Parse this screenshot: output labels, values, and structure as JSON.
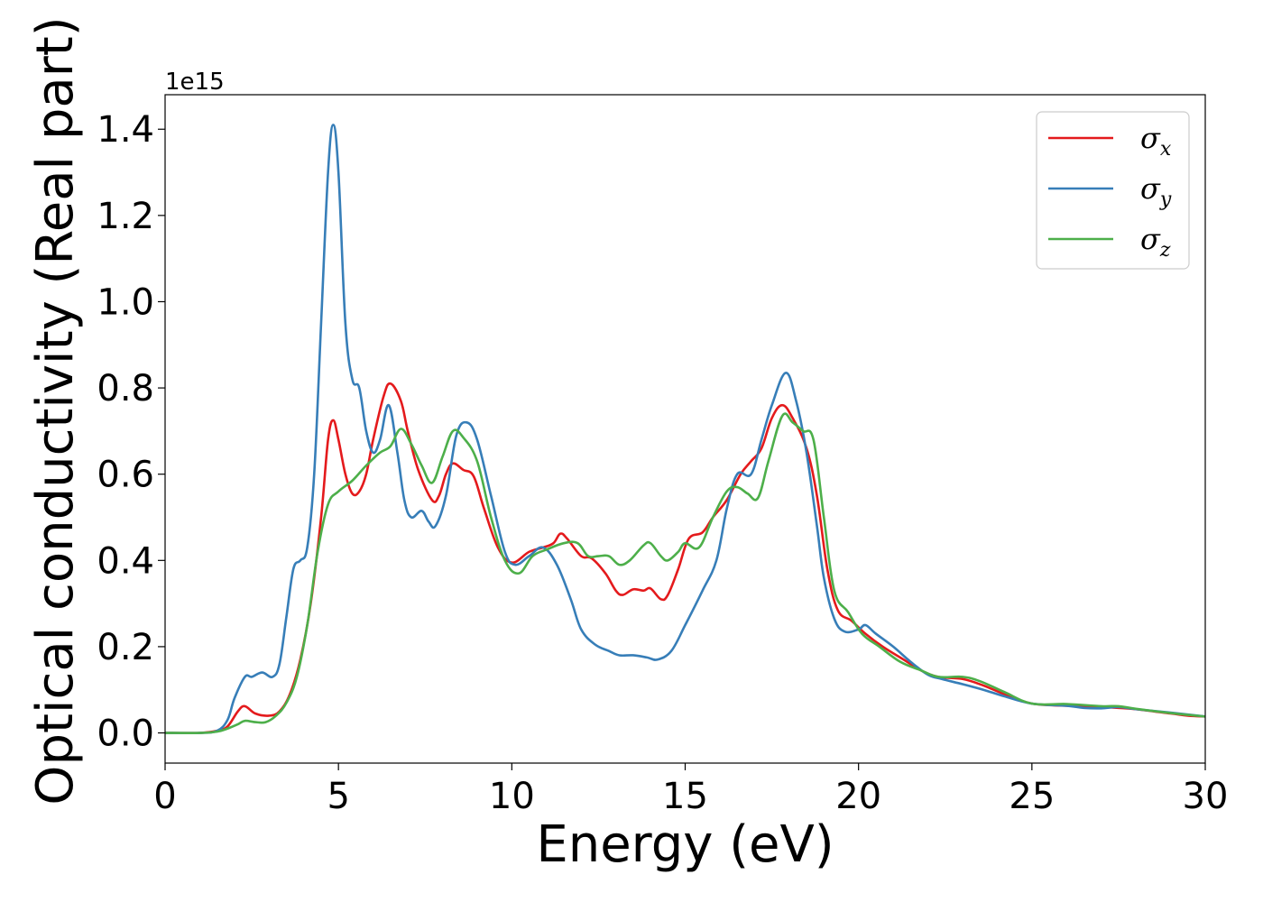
{
  "chart_data": {
    "type": "line",
    "xlabel": "Energy (eV)",
    "ylabel": "Optical conductivity (Real part)",
    "y_offset_label": "1e15",
    "xlim": [
      0,
      30
    ],
    "ylim": [
      -0.07,
      1.48
    ],
    "xticks": [
      0,
      5,
      10,
      15,
      20,
      25,
      30
    ],
    "xtick_labels": [
      "0",
      "5",
      "10",
      "15",
      "20",
      "25",
      "30"
    ],
    "yticks": [
      0.0,
      0.2,
      0.4,
      0.6,
      0.8,
      1.0,
      1.2,
      1.4
    ],
    "ytick_labels": [
      "0.0",
      "0.2",
      "0.4",
      "0.6",
      "0.8",
      "1.0",
      "1.2",
      "1.4"
    ],
    "grid": false,
    "legend_position": "top-right",
    "series": [
      {
        "name": "σx",
        "legend_symbol": "σ",
        "legend_subscript": "x",
        "color": "#e41a1c",
        "points": [
          [
            0,
            0
          ],
          [
            1,
            0
          ],
          [
            1.5,
            0.005
          ],
          [
            1.8,
            0.015
          ],
          [
            2.1,
            0.05
          ],
          [
            2.3,
            0.062
          ],
          [
            2.6,
            0.045
          ],
          [
            3,
            0.04
          ],
          [
            3.3,
            0.05
          ],
          [
            3.6,
            0.09
          ],
          [
            3.9,
            0.17
          ],
          [
            4.2,
            0.3
          ],
          [
            4.5,
            0.5
          ],
          [
            4.7,
            0.68
          ],
          [
            4.85,
            0.725
          ],
          [
            5.0,
            0.68
          ],
          [
            5.2,
            0.6
          ],
          [
            5.4,
            0.555
          ],
          [
            5.6,
            0.56
          ],
          [
            5.8,
            0.6
          ],
          [
            6.0,
            0.68
          ],
          [
            6.3,
            0.78
          ],
          [
            6.5,
            0.81
          ],
          [
            6.8,
            0.77
          ],
          [
            7.0,
            0.7
          ],
          [
            7.3,
            0.61
          ],
          [
            7.7,
            0.54
          ],
          [
            7.9,
            0.55
          ],
          [
            8.1,
            0.6
          ],
          [
            8.3,
            0.625
          ],
          [
            8.6,
            0.61
          ],
          [
            8.9,
            0.595
          ],
          [
            9.2,
            0.52
          ],
          [
            9.6,
            0.43
          ],
          [
            10.0,
            0.395
          ],
          [
            10.5,
            0.42
          ],
          [
            10.9,
            0.43
          ],
          [
            11.2,
            0.44
          ],
          [
            11.4,
            0.462
          ],
          [
            11.6,
            0.45
          ],
          [
            12.0,
            0.41
          ],
          [
            12.3,
            0.405
          ],
          [
            12.7,
            0.37
          ],
          [
            13.0,
            0.33
          ],
          [
            13.2,
            0.32
          ],
          [
            13.5,
            0.333
          ],
          [
            13.8,
            0.33
          ],
          [
            14.0,
            0.335
          ],
          [
            14.3,
            0.31
          ],
          [
            14.5,
            0.32
          ],
          [
            14.8,
            0.38
          ],
          [
            15.1,
            0.45
          ],
          [
            15.5,
            0.465
          ],
          [
            15.8,
            0.5
          ],
          [
            16.2,
            0.54
          ],
          [
            16.6,
            0.6
          ],
          [
            16.9,
            0.63
          ],
          [
            17.2,
            0.66
          ],
          [
            17.5,
            0.73
          ],
          [
            17.8,
            0.76
          ],
          [
            18.1,
            0.73
          ],
          [
            18.5,
            0.66
          ],
          [
            18.8,
            0.55
          ],
          [
            19.1,
            0.38
          ],
          [
            19.4,
            0.285
          ],
          [
            19.8,
            0.26
          ],
          [
            20.2,
            0.23
          ],
          [
            20.7,
            0.2
          ],
          [
            21.3,
            0.17
          ],
          [
            21.8,
            0.145
          ],
          [
            22.3,
            0.13
          ],
          [
            23.0,
            0.125
          ],
          [
            23.6,
            0.11
          ],
          [
            24.2,
            0.09
          ],
          [
            25.0,
            0.068
          ],
          [
            26.0,
            0.063
          ],
          [
            27.0,
            0.06
          ],
          [
            27.5,
            0.058
          ],
          [
            28.0,
            0.055
          ],
          [
            29.0,
            0.045
          ],
          [
            29.5,
            0.04
          ],
          [
            30.0,
            0.038
          ]
        ]
      },
      {
        "name": "σy",
        "legend_symbol": "σ",
        "legend_subscript": "y",
        "color": "#377eb8",
        "points": [
          [
            0,
            0
          ],
          [
            1,
            0
          ],
          [
            1.5,
            0.005
          ],
          [
            1.8,
            0.03
          ],
          [
            2.0,
            0.08
          ],
          [
            2.3,
            0.13
          ],
          [
            2.5,
            0.13
          ],
          [
            2.8,
            0.14
          ],
          [
            3.1,
            0.13
          ],
          [
            3.3,
            0.16
          ],
          [
            3.5,
            0.27
          ],
          [
            3.7,
            0.38
          ],
          [
            3.9,
            0.4
          ],
          [
            4.1,
            0.43
          ],
          [
            4.3,
            0.6
          ],
          [
            4.5,
            0.95
          ],
          [
            4.7,
            1.3
          ],
          [
            4.85,
            1.41
          ],
          [
            5.0,
            1.3
          ],
          [
            5.2,
            0.95
          ],
          [
            5.4,
            0.82
          ],
          [
            5.6,
            0.8
          ],
          [
            5.8,
            0.7
          ],
          [
            6.0,
            0.65
          ],
          [
            6.2,
            0.68
          ],
          [
            6.45,
            0.76
          ],
          [
            6.7,
            0.65
          ],
          [
            6.9,
            0.54
          ],
          [
            7.1,
            0.5
          ],
          [
            7.4,
            0.515
          ],
          [
            7.6,
            0.49
          ],
          [
            7.8,
            0.48
          ],
          [
            8.1,
            0.55
          ],
          [
            8.4,
            0.69
          ],
          [
            8.7,
            0.72
          ],
          [
            9.0,
            0.68
          ],
          [
            9.4,
            0.55
          ],
          [
            9.8,
            0.42
          ],
          [
            10.1,
            0.39
          ],
          [
            10.5,
            0.41
          ],
          [
            10.9,
            0.43
          ],
          [
            11.3,
            0.39
          ],
          [
            11.7,
            0.31
          ],
          [
            12.0,
            0.24
          ],
          [
            12.4,
            0.205
          ],
          [
            12.8,
            0.19
          ],
          [
            13.1,
            0.18
          ],
          [
            13.5,
            0.18
          ],
          [
            13.9,
            0.175
          ],
          [
            14.2,
            0.17
          ],
          [
            14.6,
            0.19
          ],
          [
            15.0,
            0.25
          ],
          [
            15.5,
            0.33
          ],
          [
            15.9,
            0.4
          ],
          [
            16.2,
            0.52
          ],
          [
            16.5,
            0.6
          ],
          [
            16.9,
            0.6
          ],
          [
            17.2,
            0.68
          ],
          [
            17.5,
            0.76
          ],
          [
            17.9,
            0.835
          ],
          [
            18.2,
            0.77
          ],
          [
            18.5,
            0.65
          ],
          [
            18.8,
            0.48
          ],
          [
            19.0,
            0.36
          ],
          [
            19.3,
            0.265
          ],
          [
            19.6,
            0.235
          ],
          [
            20.0,
            0.24
          ],
          [
            20.2,
            0.25
          ],
          [
            20.5,
            0.23
          ],
          [
            21.0,
            0.2
          ],
          [
            21.5,
            0.165
          ],
          [
            22.0,
            0.135
          ],
          [
            22.4,
            0.125
          ],
          [
            23.0,
            0.113
          ],
          [
            23.6,
            0.1
          ],
          [
            24.2,
            0.085
          ],
          [
            25.0,
            0.068
          ],
          [
            26.0,
            0.063
          ],
          [
            26.5,
            0.058
          ],
          [
            27.0,
            0.057
          ],
          [
            27.5,
            0.06
          ],
          [
            28.0,
            0.055
          ],
          [
            29.0,
            0.047
          ],
          [
            30.0,
            0.038
          ]
        ]
      },
      {
        "name": "σz",
        "legend_symbol": "σ",
        "legend_subscript": "z",
        "color": "#4daf4a",
        "points": [
          [
            0,
            0
          ],
          [
            1,
            0
          ],
          [
            1.5,
            0.003
          ],
          [
            1.8,
            0.01
          ],
          [
            2.1,
            0.02
          ],
          [
            2.3,
            0.028
          ],
          [
            2.6,
            0.025
          ],
          [
            2.9,
            0.025
          ],
          [
            3.2,
            0.04
          ],
          [
            3.5,
            0.07
          ],
          [
            3.8,
            0.13
          ],
          [
            4.1,
            0.25
          ],
          [
            4.4,
            0.42
          ],
          [
            4.7,
            0.53
          ],
          [
            5.0,
            0.56
          ],
          [
            5.4,
            0.585
          ],
          [
            5.8,
            0.62
          ],
          [
            6.2,
            0.65
          ],
          [
            6.5,
            0.665
          ],
          [
            6.8,
            0.705
          ],
          [
            7.1,
            0.67
          ],
          [
            7.4,
            0.62
          ],
          [
            7.7,
            0.58
          ],
          [
            8.0,
            0.64
          ],
          [
            8.3,
            0.7
          ],
          [
            8.6,
            0.685
          ],
          [
            9.0,
            0.63
          ],
          [
            9.4,
            0.5
          ],
          [
            9.8,
            0.4
          ],
          [
            10.2,
            0.37
          ],
          [
            10.6,
            0.41
          ],
          [
            11.0,
            0.425
          ],
          [
            11.5,
            0.44
          ],
          [
            11.9,
            0.44
          ],
          [
            12.2,
            0.41
          ],
          [
            12.5,
            0.41
          ],
          [
            12.8,
            0.41
          ],
          [
            13.1,
            0.39
          ],
          [
            13.4,
            0.4
          ],
          [
            13.8,
            0.435
          ],
          [
            14.0,
            0.44
          ],
          [
            14.3,
            0.41
          ],
          [
            14.5,
            0.4
          ],
          [
            14.8,
            0.42
          ],
          [
            15.0,
            0.44
          ],
          [
            15.4,
            0.43
          ],
          [
            15.8,
            0.5
          ],
          [
            16.2,
            0.56
          ],
          [
            16.5,
            0.57
          ],
          [
            16.8,
            0.555
          ],
          [
            17.1,
            0.545
          ],
          [
            17.4,
            0.63
          ],
          [
            17.8,
            0.735
          ],
          [
            18.1,
            0.72
          ],
          [
            18.4,
            0.7
          ],
          [
            18.7,
            0.68
          ],
          [
            19.0,
            0.5
          ],
          [
            19.3,
            0.33
          ],
          [
            19.7,
            0.28
          ],
          [
            20.1,
            0.23
          ],
          [
            20.6,
            0.2
          ],
          [
            21.2,
            0.165
          ],
          [
            21.8,
            0.145
          ],
          [
            22.3,
            0.13
          ],
          [
            23.0,
            0.13
          ],
          [
            23.5,
            0.12
          ],
          [
            24.2,
            0.095
          ],
          [
            25.0,
            0.068
          ],
          [
            26.0,
            0.067
          ],
          [
            27.0,
            0.062
          ],
          [
            27.5,
            0.062
          ],
          [
            28.0,
            0.056
          ],
          [
            29.0,
            0.046
          ],
          [
            30.0,
            0.038
          ]
        ]
      }
    ]
  }
}
